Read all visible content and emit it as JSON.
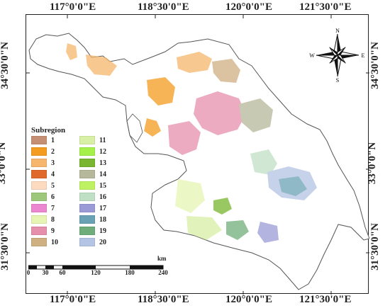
{
  "coords": {
    "top": [
      "117°0'0\"E",
      "118°30'0\"E",
      "120°0'0\"E",
      "121°30'0\"E"
    ],
    "bottom": [
      "117°0'0\"E",
      "118°30'0\"E",
      "120°0'0\"E",
      "121°30'0\"E"
    ],
    "left": [
      "34°30'0\"N",
      "33°0'0\"N",
      "31°30'0\"N"
    ],
    "right": [
      "34°30'0\"N",
      "33°0'0\"N",
      "31°30'0\"N"
    ]
  },
  "legend": {
    "title": "Subregion",
    "items": [
      {
        "label": "1",
        "color": "#c48f73"
      },
      {
        "label": "2",
        "color": "#f39c1f"
      },
      {
        "label": "3",
        "color": "#f6b66d"
      },
      {
        "label": "4",
        "color": "#e06a2b"
      },
      {
        "label": "5",
        "color": "#fddbc1"
      },
      {
        "label": "6",
        "color": "#9dc77a"
      },
      {
        "label": "7",
        "color": "#ec86d0"
      },
      {
        "label": "8",
        "color": "#e6f5b3"
      },
      {
        "label": "9",
        "color": "#e68fad"
      },
      {
        "label": "10",
        "color": "#cfb082"
      },
      {
        "label": "11",
        "color": "#d8f0a5"
      },
      {
        "label": "12",
        "color": "#a6f04a"
      },
      {
        "label": "13",
        "color": "#78b62f"
      },
      {
        "label": "14",
        "color": "#b5b89a"
      },
      {
        "label": "15",
        "color": "#bff262"
      },
      {
        "label": "16",
        "color": "#bfe0c5"
      },
      {
        "label": "17",
        "color": "#9a9bd6"
      },
      {
        "label": "18",
        "color": "#6aa2b5"
      },
      {
        "label": "19",
        "color": "#6fae7a"
      },
      {
        "label": "20",
        "color": "#b4c4e4"
      }
    ]
  },
  "scalebar": {
    "ticks": [
      "0",
      "30",
      "60",
      "120",
      "180",
      "240"
    ],
    "units": "km"
  },
  "north_arrow": {
    "n": "N",
    "s": "S",
    "e": "E",
    "w": "W"
  }
}
